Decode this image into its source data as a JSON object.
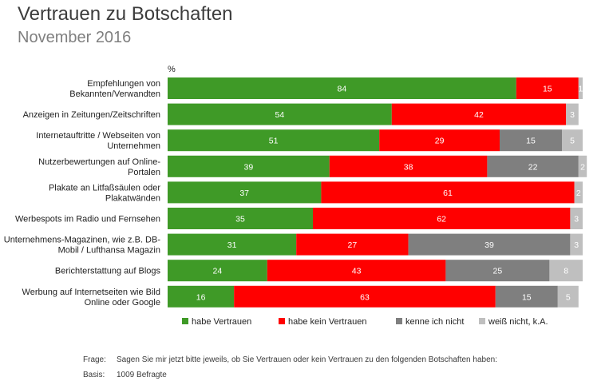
{
  "title": "Vertrauen zu Botschaften",
  "subtitle": "November 2016",
  "footnotes": {
    "frage_label": "Frage:",
    "frage_text": "Sagen Sie mir jetzt bitte jeweils, ob Sie Vertrauen oder kein Vertrauen zu den folgenden Botschaften haben:",
    "basis_label": "Basis:",
    "basis_text": "1009 Befragte"
  },
  "chart_data": {
    "type": "bar",
    "orientation": "horizontal",
    "stacked": true,
    "unit_label": "%",
    "xlim": [
      0,
      100
    ],
    "grid": false,
    "legend_position": "bottom",
    "categories": [
      [
        "Empfehlungen von",
        "Bekannten/Verwandten"
      ],
      [
        "Anzeigen in Zeitungen/Zeitschriften"
      ],
      [
        "Internetauftritte / Webseiten von",
        "Unternehmen"
      ],
      [
        "Nutzerbewertungen auf Online-",
        "Portalen"
      ],
      [
        "Plakate an Litfaßsäulen oder",
        "Plakatwänden"
      ],
      [
        "Werbespots im Radio und Fernsehen"
      ],
      [
        "Unternehmens-Magazinen, wie z.B. DB-",
        "Mobil / Lufthansa Magazin"
      ],
      [
        "Berichterstattung auf Blogs"
      ],
      [
        "Werbung auf Internetseiten wie Bild",
        "Online oder Google"
      ]
    ],
    "series": [
      {
        "name": "habe Vertrauen",
        "color": "#3f9a27",
        "label_color": "#ffffff",
        "values": [
          84,
          54,
          51,
          39,
          37,
          35,
          31,
          24,
          16
        ]
      },
      {
        "name": "habe kein Vertrauen",
        "color": "#ff0000",
        "label_color": "#ffffff",
        "values": [
          15,
          42,
          29,
          38,
          61,
          62,
          27,
          43,
          63
        ]
      },
      {
        "name": "kenne ich nicht",
        "color": "#7f7f7f",
        "label_color": "#ffffff",
        "values": [
          0,
          0,
          15,
          22,
          0,
          0,
          39,
          25,
          15
        ]
      },
      {
        "name": "weiß nicht, k.A.",
        "color": "#bfbfbf",
        "label_color": "#ffffff",
        "values": [
          1,
          3,
          5,
          2,
          2,
          3,
          3,
          8,
          5
        ]
      }
    ]
  }
}
